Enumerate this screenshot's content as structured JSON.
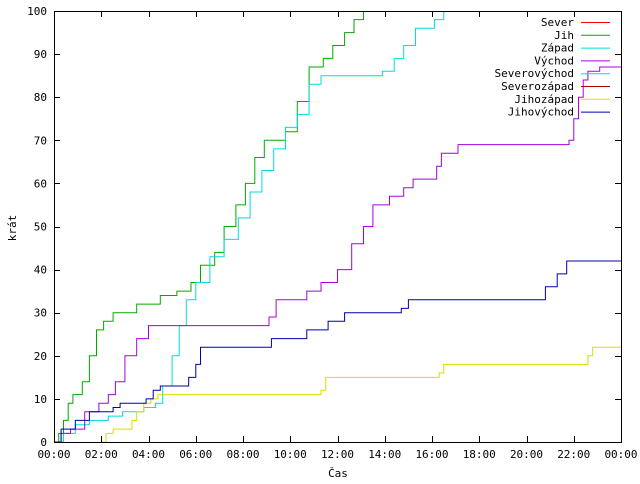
{
  "chart_data": {
    "type": "line",
    "title": "",
    "xlabel": "Čas",
    "ylabel": "krát",
    "xlim": [
      0,
      24
    ],
    "ylim": [
      0,
      100
    ],
    "grid": false,
    "legend_position": "top-right",
    "x_ticks": [
      {
        "v": 0,
        "label": "00:00"
      },
      {
        "v": 2,
        "label": "02:00"
      },
      {
        "v": 4,
        "label": "04:00"
      },
      {
        "v": 6,
        "label": "06:00"
      },
      {
        "v": 8,
        "label": "08:00"
      },
      {
        "v": 10,
        "label": "10:00"
      },
      {
        "v": 12,
        "label": "12:00"
      },
      {
        "v": 14,
        "label": "14:00"
      },
      {
        "v": 16,
        "label": "16:00"
      },
      {
        "v": 18,
        "label": "18:00"
      },
      {
        "v": 20,
        "label": "20:00"
      },
      {
        "v": 22,
        "label": "22:00"
      },
      {
        "v": 24,
        "label": "00:00"
      }
    ],
    "y_ticks": [
      {
        "v": 0,
        "label": "0"
      },
      {
        "v": 10,
        "label": "10"
      },
      {
        "v": 20,
        "label": "20"
      },
      {
        "v": 30,
        "label": "30"
      },
      {
        "v": 40,
        "label": "40"
      },
      {
        "v": 50,
        "label": "50"
      },
      {
        "v": 60,
        "label": "60"
      },
      {
        "v": 70,
        "label": "70"
      },
      {
        "v": 80,
        "label": "80"
      },
      {
        "v": 90,
        "label": "90"
      },
      {
        "v": 100,
        "label": "100"
      }
    ],
    "series": [
      {
        "name": "Sever",
        "color": "#ff0000",
        "points": []
      },
      {
        "name": "Jih",
        "color": "#00aa00",
        "points": [
          [
            0,
            0
          ],
          [
            0.2,
            2
          ],
          [
            0.4,
            5
          ],
          [
            0.6,
            9
          ],
          [
            0.8,
            11
          ],
          [
            1.2,
            14
          ],
          [
            1.5,
            20
          ],
          [
            1.8,
            26
          ],
          [
            2.1,
            28
          ],
          [
            2.5,
            30
          ],
          [
            3.5,
            32
          ],
          [
            4.5,
            34
          ],
          [
            5.2,
            35
          ],
          [
            5.8,
            37
          ],
          [
            6.2,
            41
          ],
          [
            6.8,
            44
          ],
          [
            7.2,
            50
          ],
          [
            7.7,
            55
          ],
          [
            8.1,
            60
          ],
          [
            8.5,
            66
          ],
          [
            8.9,
            70
          ],
          [
            9.8,
            72
          ],
          [
            10.3,
            79
          ],
          [
            10.8,
            87
          ],
          [
            11.4,
            89
          ],
          [
            11.8,
            92
          ],
          [
            12.3,
            95
          ],
          [
            12.7,
            98
          ],
          [
            13.1,
            100
          ]
        ]
      },
      {
        "name": "Západ",
        "color": "#00dddd",
        "points": [
          [
            0,
            0
          ],
          [
            0.4,
            2
          ],
          [
            0.9,
            4
          ],
          [
            1.5,
            5
          ],
          [
            2.3,
            6
          ],
          [
            2.9,
            7
          ],
          [
            3.8,
            8
          ],
          [
            4.3,
            9
          ],
          [
            4.6,
            13
          ],
          [
            5.0,
            20
          ],
          [
            5.3,
            27
          ],
          [
            5.6,
            33
          ],
          [
            6.0,
            37
          ],
          [
            6.6,
            43
          ],
          [
            7.2,
            47
          ],
          [
            7.8,
            52
          ],
          [
            8.3,
            58
          ],
          [
            8.8,
            63
          ],
          [
            9.3,
            68
          ],
          [
            9.8,
            73
          ],
          [
            10.3,
            76
          ],
          [
            10.8,
            83
          ],
          [
            11.3,
            85
          ],
          [
            13.9,
            86
          ],
          [
            14.4,
            89
          ],
          [
            14.8,
            92
          ],
          [
            15.3,
            96
          ],
          [
            16.1,
            98
          ],
          [
            16.5,
            100
          ]
        ]
      },
      {
        "name": "Východ",
        "color": "#aa00dd",
        "points": [
          [
            0,
            0
          ],
          [
            0.3,
            2
          ],
          [
            0.7,
            3
          ],
          [
            1.3,
            7
          ],
          [
            1.9,
            9
          ],
          [
            2.3,
            11
          ],
          [
            2.6,
            14
          ],
          [
            3.0,
            20
          ],
          [
            3.5,
            24
          ],
          [
            4.0,
            27
          ],
          [
            9.1,
            29
          ],
          [
            9.4,
            33
          ],
          [
            10.7,
            35
          ],
          [
            11.3,
            37
          ],
          [
            12.0,
            40
          ],
          [
            12.6,
            46
          ],
          [
            13.1,
            50
          ],
          [
            13.5,
            55
          ],
          [
            14.2,
            57
          ],
          [
            14.8,
            59
          ],
          [
            15.2,
            61
          ],
          [
            16.2,
            64
          ],
          [
            16.4,
            67
          ],
          [
            17.1,
            69
          ],
          [
            21.8,
            70
          ],
          [
            22.0,
            75
          ],
          [
            22.2,
            80
          ],
          [
            22.4,
            84
          ],
          [
            22.6,
            86
          ],
          [
            23.1,
            87
          ],
          [
            24.0,
            87
          ]
        ]
      },
      {
        "name": "Severovýchod",
        "color": "#00dddd",
        "points": []
      },
      {
        "name": "Severozápad",
        "color": "#aa0000",
        "points": []
      },
      {
        "name": "Jihozápad",
        "color": "#dddd00",
        "points": [
          [
            2.0,
            0
          ],
          [
            2.2,
            2
          ],
          [
            2.5,
            3
          ],
          [
            3.3,
            5
          ],
          [
            3.5,
            7
          ],
          [
            3.8,
            9
          ],
          [
            4.1,
            10
          ],
          [
            4.4,
            11
          ],
          [
            11.3,
            12
          ],
          [
            11.5,
            15
          ],
          [
            16.3,
            16
          ],
          [
            16.5,
            18
          ],
          [
            22.6,
            20
          ],
          [
            22.8,
            22
          ],
          [
            24.0,
            22
          ]
        ]
      },
      {
        "name": "Jihovýchod",
        "color": "#0000aa",
        "points": [
          [
            0,
            0
          ],
          [
            0.3,
            3
          ],
          [
            0.9,
            5
          ],
          [
            1.5,
            7
          ],
          [
            2.5,
            8
          ],
          [
            2.8,
            9
          ],
          [
            3.9,
            10
          ],
          [
            4.2,
            12
          ],
          [
            4.5,
            13
          ],
          [
            5.7,
            15
          ],
          [
            6.0,
            18
          ],
          [
            6.2,
            22
          ],
          [
            9.2,
            24
          ],
          [
            10.7,
            26
          ],
          [
            11.6,
            28
          ],
          [
            12.3,
            30
          ],
          [
            14.7,
            31
          ],
          [
            15.0,
            33
          ],
          [
            20.8,
            36
          ],
          [
            21.3,
            39
          ],
          [
            21.7,
            42
          ],
          [
            24.0,
            42
          ]
        ]
      }
    ]
  }
}
